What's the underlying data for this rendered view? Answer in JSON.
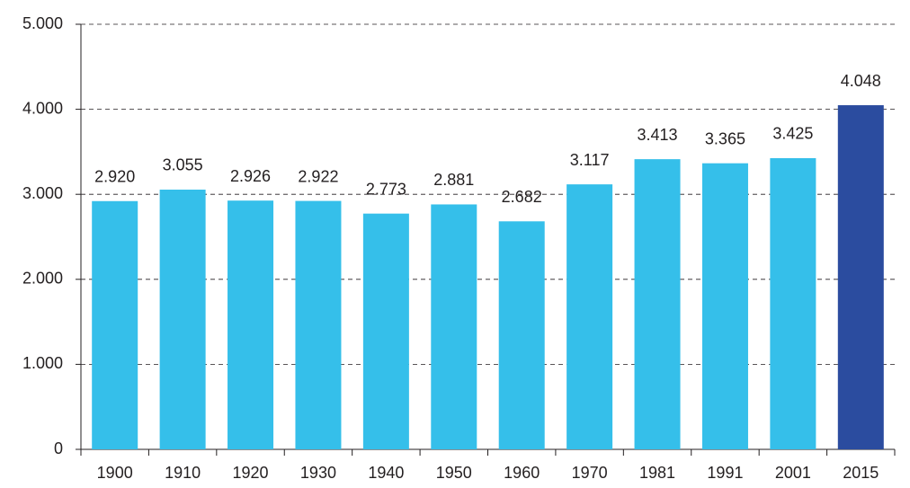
{
  "chart_data": {
    "type": "bar",
    "categories": [
      "1900",
      "1910",
      "1920",
      "1930",
      "1940",
      "1950",
      "1960",
      "1970",
      "1981",
      "1991",
      "2001",
      "2015"
    ],
    "values": [
      2920,
      3055,
      2926,
      2922,
      2773,
      2881,
      2682,
      3117,
      3413,
      3365,
      3425,
      4048
    ],
    "value_labels": [
      "2.920",
      "3.055",
      "2.926",
      "2.922",
      "2.773",
      "2.881",
      "2.682",
      "3.117",
      "3.413",
      "3.365",
      "3.425",
      "4.048"
    ],
    "colors": [
      "#35bfea",
      "#35bfea",
      "#35bfea",
      "#35bfea",
      "#35bfea",
      "#35bfea",
      "#35bfea",
      "#35bfea",
      "#35bfea",
      "#35bfea",
      "#35bfea",
      "#2b4c9f"
    ],
    "ylim": [
      0,
      5000
    ],
    "yticks": [
      0,
      {
        "value": 1000,
        "label": "1.000"
      },
      {
        "value": 2000,
        "label": "2.000"
      },
      {
        "value": 3000,
        "label": "3.000"
      },
      {
        "value": 4000,
        "label": "4.000"
      },
      {
        "value": 5000,
        "label": "5.000"
      }
    ],
    "grid": true
  }
}
